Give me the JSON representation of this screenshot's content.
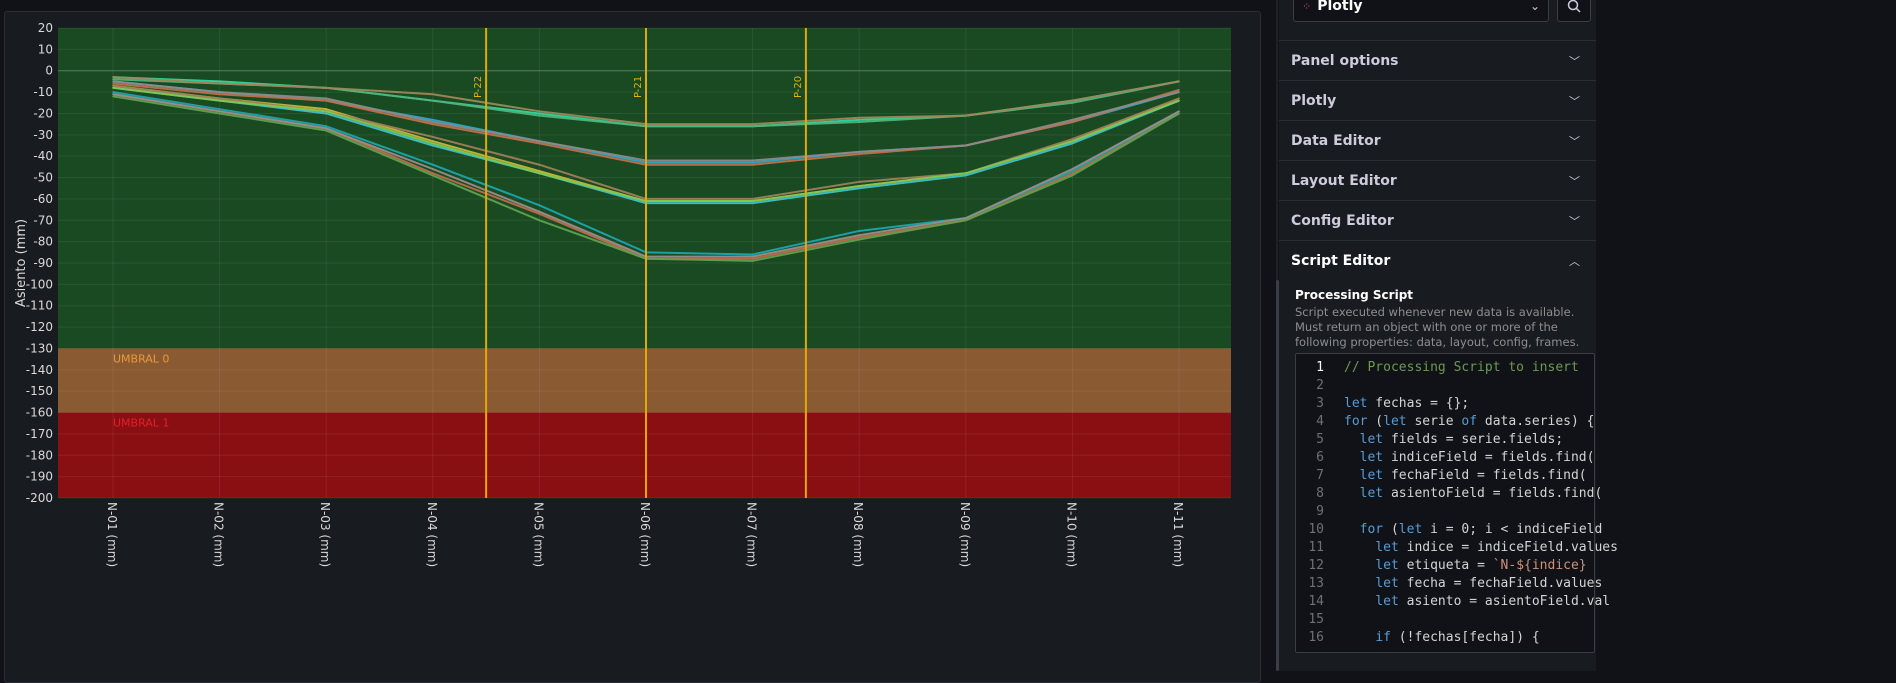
{
  "chart_data": {
    "type": "line",
    "ylabel": "Asiento (mm)",
    "ylim": [
      -200,
      20
    ],
    "yticks": [
      20,
      10,
      0,
      -10,
      -20,
      -30,
      -40,
      -50,
      -60,
      -70,
      -80,
      -90,
      -100,
      -110,
      -120,
      -130,
      -140,
      -150,
      -160,
      -170,
      -180,
      -190,
      -200
    ],
    "categories": [
      "N-01 (mm)",
      "N-02 (mm)",
      "N-03 (mm)",
      "N-04 (mm)",
      "N-05 (mm)",
      "N-06 (mm)",
      "N-07 (mm)",
      "N-08 (mm)",
      "N-09 (mm)",
      "N-10 (mm)",
      "N-11 (mm)"
    ],
    "bands": [
      {
        "from": 20,
        "to": -130,
        "color": "#1a4a22"
      },
      {
        "from": -130,
        "to": -160,
        "color": "#8a5a33",
        "label": "UMBRAL 0",
        "label_color": "#e89a3a"
      },
      {
        "from": -160,
        "to": -200,
        "color": "#8a0f12",
        "label": "UMBRAL 1",
        "label_color": "#e0202a"
      }
    ],
    "vertical_lines": [
      {
        "x": 3.5,
        "label": "P-22"
      },
      {
        "x": 5.0,
        "label": "P-21"
      },
      {
        "x": 6.5,
        "label": "P-20"
      }
    ],
    "vline_color": "#e5a800",
    "grid": true,
    "series": [
      {
        "color": "#2fd6a0",
        "values": [
          -3,
          -5,
          -8,
          -14,
          -20,
          -26,
          -26,
          -23,
          -21,
          -14,
          -5
        ]
      },
      {
        "color": "#4fb37a",
        "values": [
          -4,
          -6,
          -8,
          -14,
          -21,
          -26,
          -26,
          -24,
          -21,
          -15,
          -5
        ]
      },
      {
        "color": "#a0855a",
        "values": [
          -3,
          -6,
          -8,
          -11,
          -19,
          -25,
          -25,
          -22,
          -21,
          -14,
          -5
        ]
      },
      {
        "color": "#2fa5c8",
        "values": [
          -5,
          -10,
          -14,
          -23,
          -33,
          -43,
          -43,
          -38,
          -35,
          -24,
          -10
        ]
      },
      {
        "color": "#c0704a",
        "values": [
          -6,
          -11,
          -14,
          -25,
          -34,
          -44,
          -44,
          -39,
          -35,
          -24,
          -9
        ]
      },
      {
        "color": "#8c8a8a",
        "values": [
          -5,
          -10,
          -13,
          -24,
          -33,
          -42,
          -42,
          -38,
          -35,
          -23,
          -10
        ]
      },
      {
        "color": "#c9b43a",
        "values": [
          -7,
          -13,
          -18,
          -33,
          -47,
          -61,
          -61,
          -54,
          -48,
          -33,
          -13
        ]
      },
      {
        "color": "#3fc1c9",
        "values": [
          -8,
          -14,
          -20,
          -35,
          -48,
          -62,
          -62,
          -55,
          -49,
          -34,
          -14
        ]
      },
      {
        "color": "#a07d5a",
        "values": [
          -7,
          -13,
          -19,
          -31,
          -44,
          -60,
          -60,
          -52,
          -48,
          -32,
          -13
        ]
      },
      {
        "color": "#7ec850",
        "values": [
          -8,
          -14,
          -19,
          -34,
          -48,
          -61,
          -61,
          -54,
          -48,
          -33,
          -14
        ]
      },
      {
        "color": "#1aa5b0",
        "values": [
          -10,
          -18,
          -26,
          -44,
          -63,
          -85,
          -86,
          -75,
          -69,
          -47,
          -19
        ]
      },
      {
        "color": "#c06a4a",
        "values": [
          -11,
          -19,
          -27,
          -48,
          -67,
          -88,
          -88,
          -78,
          -70,
          -48,
          -20
        ]
      },
      {
        "color": "#9a8c8c",
        "values": [
          -11,
          -19,
          -27,
          -46,
          -66,
          -87,
          -87,
          -77,
          -69,
          -46,
          -19
        ]
      },
      {
        "color": "#5fa050",
        "values": [
          -12,
          -20,
          -28,
          -49,
          -70,
          -88,
          -89,
          -79,
          -70,
          -49,
          -20
        ]
      }
    ]
  },
  "options": {
    "visualization": {
      "name": "Plotly",
      "icon": "plotly-icon"
    },
    "sections": [
      {
        "label": "Panel options",
        "open": false
      },
      {
        "label": "Plotly",
        "open": false
      },
      {
        "label": "Data Editor",
        "open": false
      },
      {
        "label": "Layout Editor",
        "open": false
      },
      {
        "label": "Config Editor",
        "open": false
      },
      {
        "label": "Script Editor",
        "open": true
      }
    ],
    "processing_script": {
      "title": "Processing Script",
      "description": "Script executed whenever new data is available. Must return an object with one or more of the following properties: data, layout, config, frames."
    }
  },
  "code": {
    "active_line": 1,
    "lines": [
      {
        "n": "1",
        "tokens": [
          [
            "c",
            "// Processing Script to insert"
          ]
        ]
      },
      {
        "n": "2",
        "tokens": []
      },
      {
        "n": "3",
        "tokens": [
          [
            "k",
            "let"
          ],
          [
            "p",
            " fechas = {};"
          ]
        ]
      },
      {
        "n": "4",
        "tokens": [
          [
            "k",
            "for"
          ],
          [
            "p",
            " ("
          ],
          [
            "k",
            "let"
          ],
          [
            "p",
            " serie "
          ],
          [
            "k",
            "of"
          ],
          [
            "p",
            " data.series) {"
          ]
        ]
      },
      {
        "n": "5",
        "tokens": [
          [
            "p",
            "  "
          ],
          [
            "k",
            "let"
          ],
          [
            "p",
            " fields = serie.fields;"
          ]
        ]
      },
      {
        "n": "6",
        "tokens": [
          [
            "p",
            "  "
          ],
          [
            "k",
            "let"
          ],
          [
            "p",
            " indiceField = fields.find("
          ]
        ]
      },
      {
        "n": "7",
        "tokens": [
          [
            "p",
            "  "
          ],
          [
            "k",
            "let"
          ],
          [
            "p",
            " fechaField = fields.find("
          ]
        ]
      },
      {
        "n": "8",
        "tokens": [
          [
            "p",
            "  "
          ],
          [
            "k",
            "let"
          ],
          [
            "p",
            " asientoField = fields.find("
          ]
        ]
      },
      {
        "n": "9",
        "tokens": []
      },
      {
        "n": "10",
        "tokens": [
          [
            "p",
            "  "
          ],
          [
            "k",
            "for"
          ],
          [
            "p",
            " ("
          ],
          [
            "k",
            "let"
          ],
          [
            "p",
            " i = 0; i < indiceField"
          ]
        ]
      },
      {
        "n": "11",
        "tokens": [
          [
            "p",
            "    "
          ],
          [
            "k",
            "let"
          ],
          [
            "p",
            " indice = indiceField.values"
          ]
        ]
      },
      {
        "n": "12",
        "tokens": [
          [
            "p",
            "    "
          ],
          [
            "k",
            "let"
          ],
          [
            "p",
            " etiqueta = "
          ],
          [
            "t",
            "`N-${indice}"
          ]
        ]
      },
      {
        "n": "13",
        "tokens": [
          [
            "p",
            "    "
          ],
          [
            "k",
            "let"
          ],
          [
            "p",
            " fecha = fechaField.values"
          ]
        ]
      },
      {
        "n": "14",
        "tokens": [
          [
            "p",
            "    "
          ],
          [
            "k",
            "let"
          ],
          [
            "p",
            " asiento = asientoField.val"
          ]
        ]
      },
      {
        "n": "15",
        "tokens": []
      },
      {
        "n": "16",
        "tokens": [
          [
            "p",
            "    "
          ],
          [
            "k",
            "if"
          ],
          [
            "p",
            " (!fechas[fecha]) {"
          ]
        ]
      }
    ]
  }
}
